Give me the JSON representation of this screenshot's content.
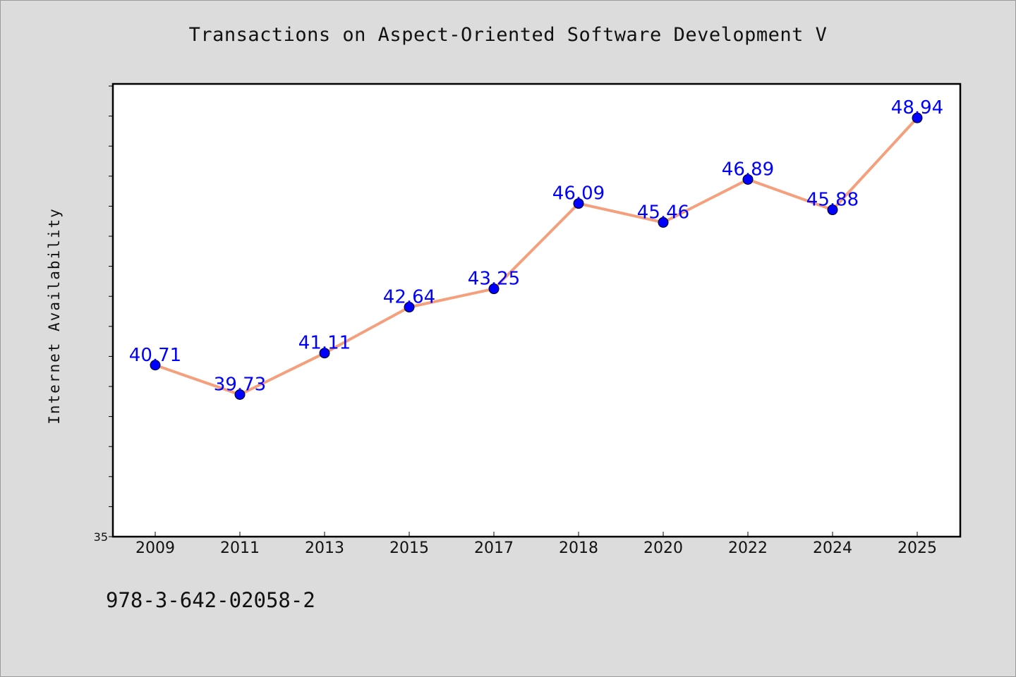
{
  "title": "Transactions on Aspect-Oriented Software Development V",
  "footer_text": "978-3-642-02058-2",
  "colors": {
    "background": "#dcdcdc",
    "plot_background": "#ffffff",
    "line": "#f4a07c",
    "marker": "#0000ff",
    "data_label": "#0000ff"
  },
  "chart_data": {
    "type": "line",
    "title": "Transactions on Aspect-Oriented Software Development V",
    "xlabel": "",
    "ylabel": "Internet Availability",
    "categories": [
      "2009",
      "2011",
      "2013",
      "2015",
      "2017",
      "2018",
      "2020",
      "2022",
      "2024",
      "2025"
    ],
    "series": [
      {
        "values": [
          40.71,
          39.73,
          41.11,
          42.64,
          43.25,
          46.09,
          45.46,
          46.89,
          45.88,
          48.94
        ],
        "labels": [
          "40.71",
          "39.73",
          "41.11",
          "42.64",
          "43.25",
          "46.09",
          "45.46",
          "46.89",
          "45.88",
          "48.94"
        ]
      }
    ],
    "ylim": [
      35,
      50
    ],
    "yticks_labeled": [
      "35"
    ],
    "y_minor_tick_step": 1,
    "grid": false,
    "legend": "none"
  }
}
